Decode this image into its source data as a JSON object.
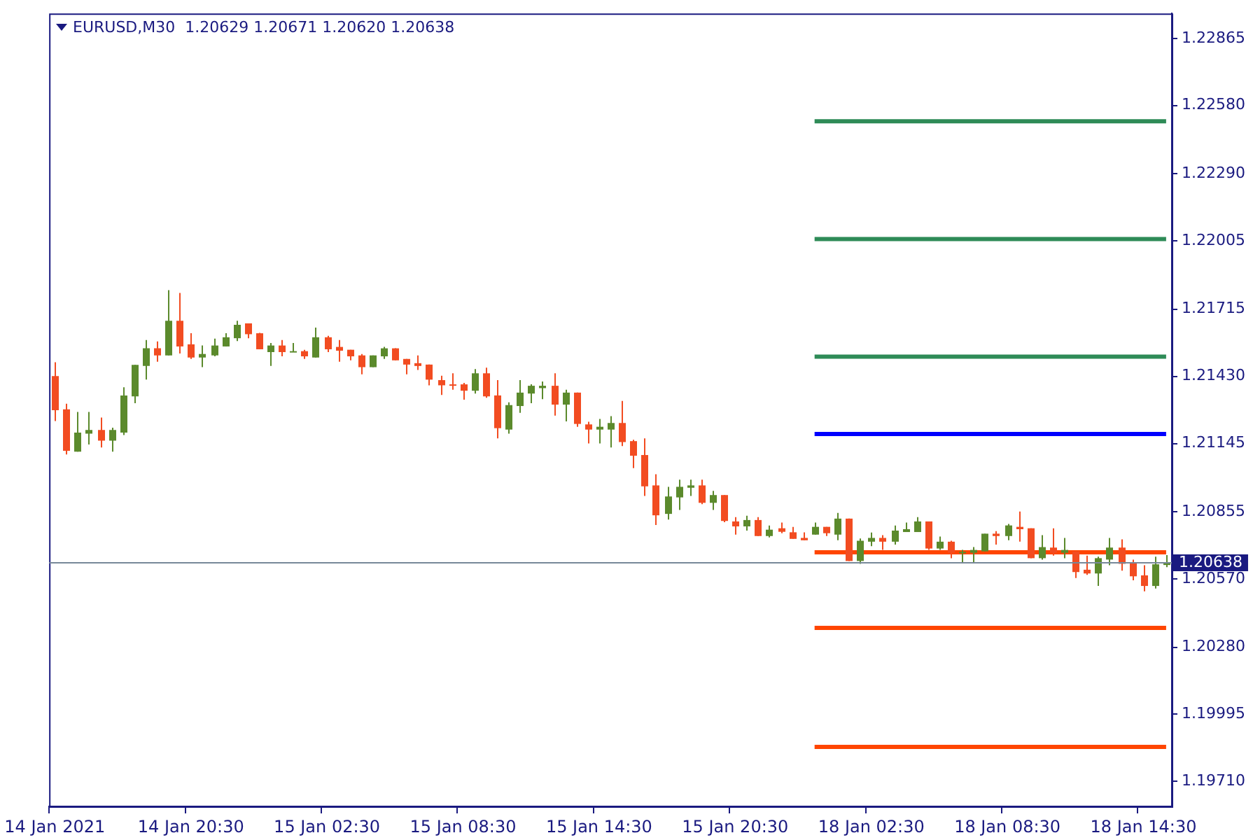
{
  "chart_data": {
    "type": "candlestick",
    "title": "EURUSD,M30  1.20629 1.20671 1.20620 1.20638",
    "categories": [
      "14 Jan 2021",
      null,
      null,
      null,
      null,
      null,
      null,
      null,
      null,
      null,
      null,
      null,
      "14 Jan 20:30",
      null,
      null,
      null,
      null,
      null,
      null,
      null,
      null,
      null,
      null,
      null,
      "15 Jan 02:30",
      null,
      null,
      null,
      null,
      null,
      null,
      null,
      null,
      null,
      null,
      null,
      "15 Jan 08:30",
      null,
      null,
      null,
      null,
      null,
      null,
      null,
      null,
      null,
      null,
      null,
      "15 Jan 14:30",
      null,
      null,
      null,
      null,
      null,
      null,
      null,
      null,
      null,
      null,
      null,
      "15 Jan 20:30",
      null,
      null,
      null,
      null,
      null,
      null,
      null,
      null,
      null,
      null,
      null,
      "18 Jan 02:30",
      null,
      null,
      null,
      null,
      null,
      null,
      null,
      null,
      null,
      null,
      null,
      "18 Jan 08:30",
      null,
      null,
      null,
      null,
      null,
      null,
      null,
      null,
      null,
      null,
      null,
      "18 Jan 14:30",
      null,
      null
    ],
    "ohlc": [
      [
        1.21431,
        1.2149,
        1.2124,
        1.21286
      ],
      [
        1.2129,
        1.21314,
        1.21098,
        1.21114
      ],
      [
        1.2111,
        1.21279,
        1.2111,
        1.21191
      ],
      [
        1.21187,
        1.21279,
        1.21141,
        1.21202
      ],
      [
        1.21202,
        1.21255,
        1.21128,
        1.21157
      ],
      [
        1.21157,
        1.21212,
        1.2111,
        1.21202
      ],
      [
        1.21191,
        1.21384,
        1.21181,
        1.21349
      ],
      [
        1.21345,
        1.21479,
        1.21316,
        1.21479
      ],
      [
        1.21474,
        1.21584,
        1.21416,
        1.21549
      ],
      [
        1.21549,
        1.21578,
        1.21492,
        1.21519
      ],
      [
        1.21519,
        1.21796,
        1.21519,
        1.21666
      ],
      [
        1.21666,
        1.21784,
        1.21527,
        1.21557
      ],
      [
        1.21566,
        1.21613,
        1.21504,
        1.2151
      ],
      [
        1.2151,
        1.21561,
        1.21469,
        1.21525
      ],
      [
        1.21519,
        1.2159,
        1.21515,
        1.21561
      ],
      [
        1.21557,
        1.21613,
        1.21557,
        1.21596
      ],
      [
        1.21592,
        1.21666,
        1.2158,
        1.21649
      ],
      [
        1.21655,
        1.21655,
        1.21592,
        1.21609
      ],
      [
        1.21613,
        1.21615,
        1.21545,
        1.21545
      ],
      [
        1.21533,
        1.21572,
        1.21474,
        1.21561
      ],
      [
        1.21561,
        1.21584,
        1.21515,
        1.21533
      ],
      [
        1.21533,
        1.21572,
        1.21533,
        1.21537
      ],
      [
        1.21537,
        1.21543,
        1.21504,
        1.21515
      ],
      [
        1.2151,
        1.21637,
        1.2151,
        1.21596
      ],
      [
        1.21596,
        1.21602,
        1.21533,
        1.21545
      ],
      [
        1.21555,
        1.21584,
        1.21492,
        1.21539
      ],
      [
        1.21543,
        1.21543,
        1.21498,
        1.21515
      ],
      [
        1.21519,
        1.21525,
        1.21439,
        1.21469
      ],
      [
        1.21469,
        1.21519,
        1.21469,
        1.21519
      ],
      [
        1.21515,
        1.21555,
        1.21504,
        1.21549
      ],
      [
        1.21549,
        1.21549,
        1.21498,
        1.21498
      ],
      [
        1.21504,
        1.21504,
        1.21439,
        1.2148
      ],
      [
        1.21486,
        1.21519,
        1.21457,
        1.21474
      ],
      [
        1.2148,
        1.2148,
        1.21392,
        1.21416
      ],
      [
        1.21414,
        1.21433,
        1.21351,
        1.21392
      ],
      [
        1.21396,
        1.21443,
        1.21373,
        1.21392
      ],
      [
        1.21396,
        1.21402,
        1.21331,
        1.21369
      ],
      [
        1.21369,
        1.21461,
        1.21357,
        1.21443
      ],
      [
        1.21443,
        1.21467,
        1.21339,
        1.21345
      ],
      [
        1.21349,
        1.21414,
        1.21167,
        1.2121
      ],
      [
        1.21204,
        1.2132,
        1.21187,
        1.21308
      ],
      [
        1.21304,
        1.21414,
        1.21275,
        1.21361
      ],
      [
        1.21357,
        1.21396,
        1.21316,
        1.2139
      ],
      [
        1.2138,
        1.21408,
        1.21333,
        1.2139
      ],
      [
        1.2139,
        1.21443,
        1.21263,
        1.2131
      ],
      [
        1.2131,
        1.21373,
        1.21239,
        1.21361
      ],
      [
        1.21361,
        1.21361,
        1.21216,
        1.21228
      ],
      [
        1.21226,
        1.21237,
        1.21145,
        1.21204
      ],
      [
        1.21204,
        1.21249,
        1.21145,
        1.21216
      ],
      [
        1.21204,
        1.21261,
        1.21128,
        1.21232
      ],
      [
        1.21232,
        1.21326,
        1.21134,
        1.21151
      ],
      [
        1.21155,
        1.21161,
        1.2104,
        1.21093
      ],
      [
        1.21096,
        1.21167,
        1.20922,
        1.20963
      ],
      [
        1.20967,
        1.21014,
        1.20799,
        1.2084
      ],
      [
        1.20846,
        1.20961,
        1.20822,
        1.2092
      ],
      [
        1.20916,
        1.20991,
        1.20863,
        1.20961
      ],
      [
        1.20957,
        1.20991,
        1.20922,
        1.20967
      ],
      [
        1.20967,
        1.20991,
        1.20887,
        1.20893
      ],
      [
        1.20893,
        1.20944,
        1.20863,
        1.20926
      ],
      [
        1.20926,
        1.20926,
        1.20811,
        1.20816
      ],
      [
        1.20814,
        1.20832,
        1.20758,
        1.20793
      ],
      [
        1.20793,
        1.20838,
        1.20775,
        1.2082
      ],
      [
        1.2082,
        1.20832,
        1.20752,
        1.20752
      ],
      [
        1.20752,
        1.20797,
        1.20746,
        1.20779
      ],
      [
        1.20785,
        1.20809,
        1.20764,
        1.2077
      ],
      [
        1.20768,
        1.20791,
        1.2074,
        1.2074
      ],
      [
        1.20744,
        1.20768,
        1.20734,
        1.20734
      ],
      [
        1.20758,
        1.20809,
        1.20758,
        1.20791
      ],
      [
        1.20791,
        1.20791,
        1.20752,
        1.20764
      ],
      [
        1.20758,
        1.2085,
        1.20734,
        1.20826
      ],
      [
        1.20826,
        1.20826,
        1.20646,
        1.20646
      ],
      [
        1.20646,
        1.20742,
        1.20634,
        1.20732
      ],
      [
        1.20728,
        1.20767,
        1.20709,
        1.20744
      ],
      [
        1.20744,
        1.20756,
        1.20693,
        1.20728
      ],
      [
        1.20728,
        1.20797,
        1.20716,
        1.20775
      ],
      [
        1.20769,
        1.20809,
        1.20769,
        1.20781
      ],
      [
        1.20769,
        1.20832,
        1.20769,
        1.20814
      ],
      [
        1.20814,
        1.20814,
        1.20693,
        1.20699
      ],
      [
        1.20699,
        1.2075,
        1.20693,
        1.20728
      ],
      [
        1.20728,
        1.20732,
        1.20658,
        1.20681
      ],
      [
        1.20681,
        1.20693,
        1.2064,
        1.20685
      ],
      [
        1.20681,
        1.20705,
        1.2064,
        1.20693
      ],
      [
        1.20687,
        1.20762,
        1.20687,
        1.20762
      ],
      [
        1.20762,
        1.20773,
        1.20716,
        1.20752
      ],
      [
        1.20752,
        1.20803,
        1.20734,
        1.20797
      ],
      [
        1.20791,
        1.20856,
        1.20728,
        1.20781
      ],
      [
        1.20785,
        1.20785,
        1.20658,
        1.20658
      ],
      [
        1.20658,
        1.20756,
        1.20652,
        1.20705
      ],
      [
        1.20703,
        1.20785,
        1.20669,
        1.20681
      ],
      [
        1.20681,
        1.20744,
        1.20658,
        1.20693
      ],
      [
        1.20687,
        1.20687,
        1.20574,
        1.20599
      ],
      [
        1.20609,
        1.20669,
        1.20587,
        1.20593
      ],
      [
        1.20593,
        1.20664,
        1.2054,
        1.20658
      ],
      [
        1.20652,
        1.20744,
        1.20628,
        1.20703
      ],
      [
        1.20703,
        1.20738,
        1.20605,
        1.20634
      ],
      [
        1.2064,
        1.20652,
        1.20564,
        1.20581
      ],
      [
        1.20585,
        1.20628,
        1.20517,
        1.2054
      ],
      [
        1.2054,
        1.20664,
        1.20529,
        1.20632
      ],
      [
        1.20629,
        1.20671,
        1.2062,
        1.20638
      ]
    ],
    "colors": [
      "#f24c21",
      "#f24c21",
      "#5b8a2c",
      "#5b8a2c",
      "#f24c21",
      "#5b8a2c",
      "#5b8a2c",
      "#5b8a2c",
      "#5b8a2c",
      "#f24c21",
      "#5b8a2c",
      "#f24c21",
      "#f24c21",
      "#5b8a2c",
      "#5b8a2c",
      "#5b8a2c",
      "#5b8a2c",
      "#f24c21",
      "#f24c21",
      "#5b8a2c",
      "#f24c21",
      "#5b8a2c",
      "#f24c21",
      "#5b8a2c",
      "#f24c21",
      "#f24c21",
      "#f24c21",
      "#f24c21",
      "#5b8a2c",
      "#5b8a2c",
      "#f24c21",
      "#f24c21",
      "#f24c21",
      "#f24c21",
      "#f24c21",
      "#f24c21",
      "#f24c21",
      "#5b8a2c",
      "#f24c21",
      "#f24c21",
      "#5b8a2c",
      "#5b8a2c",
      "#5b8a2c",
      "#5b8a2c",
      "#f24c21",
      "#5b8a2c",
      "#f24c21",
      "#f24c21",
      "#5b8a2c",
      "#5b8a2c",
      "#f24c21",
      "#f24c21",
      "#f24c21",
      "#f24c21",
      "#5b8a2c",
      "#5b8a2c",
      "#5b8a2c",
      "#f24c21",
      "#5b8a2c",
      "#f24c21",
      "#f24c21",
      "#5b8a2c",
      "#f24c21",
      "#5b8a2c",
      "#f24c21",
      "#f24c21",
      "#f24c21",
      "#5b8a2c",
      "#f24c21",
      "#5b8a2c",
      "#f24c21",
      "#5b8a2c",
      "#5b8a2c",
      "#f24c21",
      "#5b8a2c",
      "#5b8a2c",
      "#5b8a2c",
      "#f24c21",
      "#5b8a2c",
      "#f24c21",
      "#5b8a2c",
      "#5b8a2c",
      "#5b8a2c",
      "#f24c21",
      "#5b8a2c",
      "#f24c21",
      "#f24c21",
      "#5b8a2c",
      "#f24c21",
      "#5b8a2c",
      "#f24c21",
      "#f24c21",
      "#5b8a2c",
      "#5b8a2c",
      "#f24c21",
      "#f24c21",
      "#f24c21",
      "#5b8a2c",
      "#5b8a2c"
    ],
    "series": [
      {
        "type": "line",
        "color": "#2e8b57",
        "values": [
          null,
          null,
          null,
          null,
          null,
          null,
          null,
          null,
          null,
          null,
          null,
          null,
          null,
          null,
          null,
          null,
          null,
          null,
          null,
          null,
          null,
          null,
          null,
          null,
          null,
          null,
          null,
          null,
          null,
          null,
          null,
          null,
          null,
          null,
          null,
          null,
          null,
          null,
          null,
          null,
          null,
          null,
          null,
          null,
          null,
          null,
          null,
          null,
          null,
          null,
          null,
          null,
          null,
          null,
          null,
          null,
          null,
          null,
          null,
          null,
          null,
          null,
          null,
          null,
          null,
          null,
          null,
          1.22513,
          1.22513,
          1.22513,
          1.22513,
          1.22513,
          1.22513,
          1.22513,
          1.22513,
          1.22513,
          1.22513,
          1.22513,
          1.22513,
          1.22513,
          1.22513,
          1.22513,
          1.22513,
          1.22513,
          1.22513,
          1.22513,
          1.22513,
          1.22513,
          1.22513,
          1.22513,
          1.22513,
          1.22513,
          1.22513,
          1.22513,
          1.22513,
          1.22513,
          1.22513,
          1.22513,
          1.22513
        ]
      },
      {
        "type": "line",
        "color": "#2e8b57",
        "values": [
          null,
          null,
          null,
          null,
          null,
          null,
          null,
          null,
          null,
          null,
          null,
          null,
          null,
          null,
          null,
          null,
          null,
          null,
          null,
          null,
          null,
          null,
          null,
          null,
          null,
          null,
          null,
          null,
          null,
          null,
          null,
          null,
          null,
          null,
          null,
          null,
          null,
          null,
          null,
          null,
          null,
          null,
          null,
          null,
          null,
          null,
          null,
          null,
          null,
          null,
          null,
          null,
          null,
          null,
          null,
          null,
          null,
          null,
          null,
          null,
          null,
          null,
          null,
          null,
          null,
          null,
          null,
          1.22013,
          1.22013,
          1.22013,
          1.22013,
          1.22013,
          1.22013,
          1.22013,
          1.22013,
          1.22013,
          1.22013,
          1.22013,
          1.22013,
          1.22013,
          1.22013,
          1.22013,
          1.22013,
          1.22013,
          1.22013,
          1.22013,
          1.22013,
          1.22013,
          1.22013,
          1.22013,
          1.22013,
          1.22013,
          1.22013,
          1.22013,
          1.22013,
          1.22013,
          1.22013,
          1.22013,
          1.22013
        ]
      },
      {
        "type": "line",
        "color": "#2e8b57",
        "values": [
          null,
          null,
          null,
          null,
          null,
          null,
          null,
          null,
          null,
          null,
          null,
          null,
          null,
          null,
          null,
          null,
          null,
          null,
          null,
          null,
          null,
          null,
          null,
          null,
          null,
          null,
          null,
          null,
          null,
          null,
          null,
          null,
          null,
          null,
          null,
          null,
          null,
          null,
          null,
          null,
          null,
          null,
          null,
          null,
          null,
          null,
          null,
          null,
          null,
          null,
          null,
          null,
          null,
          null,
          null,
          null,
          null,
          null,
          null,
          null,
          null,
          null,
          null,
          null,
          null,
          null,
          null,
          1.21514,
          1.21514,
          1.21514,
          1.21514,
          1.21514,
          1.21514,
          1.21514,
          1.21514,
          1.21514,
          1.21514,
          1.21514,
          1.21514,
          1.21514,
          1.21514,
          1.21514,
          1.21514,
          1.21514,
          1.21514,
          1.21514,
          1.21514,
          1.21514,
          1.21514,
          1.21514,
          1.21514,
          1.21514,
          1.21514,
          1.21514,
          1.21514,
          1.21514,
          1.21514,
          1.21514,
          1.21514
        ]
      },
      {
        "type": "line",
        "color": "#0000ff",
        "values": [
          null,
          null,
          null,
          null,
          null,
          null,
          null,
          null,
          null,
          null,
          null,
          null,
          null,
          null,
          null,
          null,
          null,
          null,
          null,
          null,
          null,
          null,
          null,
          null,
          null,
          null,
          null,
          null,
          null,
          null,
          null,
          null,
          null,
          null,
          null,
          null,
          null,
          null,
          null,
          null,
          null,
          null,
          null,
          null,
          null,
          null,
          null,
          null,
          null,
          null,
          null,
          null,
          null,
          null,
          null,
          null,
          null,
          null,
          null,
          null,
          null,
          null,
          null,
          null,
          null,
          null,
          null,
          1.21185,
          1.21185,
          1.21185,
          1.21185,
          1.21185,
          1.21185,
          1.21185,
          1.21185,
          1.21185,
          1.21185,
          1.21185,
          1.21185,
          1.21185,
          1.21185,
          1.21185,
          1.21185,
          1.21185,
          1.21185,
          1.21185,
          1.21185,
          1.21185,
          1.21185,
          1.21185,
          1.21185,
          1.21185,
          1.21185,
          1.21185,
          1.21185,
          1.21185,
          1.21185,
          1.21185,
          1.21185
        ]
      },
      {
        "type": "line",
        "color": "#ff4500",
        "values": [
          null,
          null,
          null,
          null,
          null,
          null,
          null,
          null,
          null,
          null,
          null,
          null,
          null,
          null,
          null,
          null,
          null,
          null,
          null,
          null,
          null,
          null,
          null,
          null,
          null,
          null,
          null,
          null,
          null,
          null,
          null,
          null,
          null,
          null,
          null,
          null,
          null,
          null,
          null,
          null,
          null,
          null,
          null,
          null,
          null,
          null,
          null,
          null,
          null,
          null,
          null,
          null,
          null,
          null,
          null,
          null,
          null,
          null,
          null,
          null,
          null,
          null,
          null,
          null,
          null,
          null,
          null,
          1.20683,
          1.20683,
          1.20683,
          1.20683,
          1.20683,
          1.20683,
          1.20683,
          1.20683,
          1.20683,
          1.20683,
          1.20683,
          1.20683,
          1.20683,
          1.20683,
          1.20683,
          1.20683,
          1.20683,
          1.20683,
          1.20683,
          1.20683,
          1.20683,
          1.20683,
          1.20683,
          1.20683,
          1.20683,
          1.20683,
          1.20683,
          1.20683,
          1.20683,
          1.20683,
          1.20683,
          1.20683
        ]
      },
      {
        "type": "line",
        "color": "#ff4500",
        "values": [
          null,
          null,
          null,
          null,
          null,
          null,
          null,
          null,
          null,
          null,
          null,
          null,
          null,
          null,
          null,
          null,
          null,
          null,
          null,
          null,
          null,
          null,
          null,
          null,
          null,
          null,
          null,
          null,
          null,
          null,
          null,
          null,
          null,
          null,
          null,
          null,
          null,
          null,
          null,
          null,
          null,
          null,
          null,
          null,
          null,
          null,
          null,
          null,
          null,
          null,
          null,
          null,
          null,
          null,
          null,
          null,
          null,
          null,
          null,
          null,
          null,
          null,
          null,
          null,
          null,
          null,
          null,
          1.20362,
          1.20362,
          1.20362,
          1.20362,
          1.20362,
          1.20362,
          1.20362,
          1.20362,
          1.20362,
          1.20362,
          1.20362,
          1.20362,
          1.20362,
          1.20362,
          1.20362,
          1.20362,
          1.20362,
          1.20362,
          1.20362,
          1.20362,
          1.20362,
          1.20362,
          1.20362,
          1.20362,
          1.20362,
          1.20362,
          1.20362,
          1.20362,
          1.20362,
          1.20362,
          1.20362,
          1.20362
        ]
      },
      {
        "type": "line",
        "color": "#ff4500",
        "values": [
          null,
          null,
          null,
          null,
          null,
          null,
          null,
          null,
          null,
          null,
          null,
          null,
          null,
          null,
          null,
          null,
          null,
          null,
          null,
          null,
          null,
          null,
          null,
          null,
          null,
          null,
          null,
          null,
          null,
          null,
          null,
          null,
          null,
          null,
          null,
          null,
          null,
          null,
          null,
          null,
          null,
          null,
          null,
          null,
          null,
          null,
          null,
          null,
          null,
          null,
          null,
          null,
          null,
          null,
          null,
          null,
          null,
          null,
          null,
          null,
          null,
          null,
          null,
          null,
          null,
          null,
          null,
          1.19857,
          1.19857,
          1.19857,
          1.19857,
          1.19857,
          1.19857,
          1.19857,
          1.19857,
          1.19857,
          1.19857,
          1.19857,
          1.19857,
          1.19857,
          1.19857,
          1.19857,
          1.19857,
          1.19857,
          1.19857,
          1.19857,
          1.19857,
          1.19857,
          1.19857,
          1.19857,
          1.19857,
          1.19857,
          1.19857,
          1.19857,
          1.19857,
          1.19857,
          1.19857,
          1.19857,
          1.19857
        ]
      }
    ],
    "ref_lines": [
      {
        "axis": "y",
        "value": 1.20638,
        "label": "1.20638",
        "color": "#778899"
      }
    ],
    "ylim": [
      1.19604,
      1.22971
    ],
    "yticks": [
      {
        "value": 1.1971,
        "label": "1.19710"
      },
      1.19995,
      {
        "value": 1.2028,
        "label": "1.20280"
      },
      {
        "value": 1.2057,
        "label": "1.20570"
      },
      1.20855,
      1.21145,
      {
        "value": 1.2143,
        "label": "1.21430"
      },
      1.21715,
      1.22005,
      {
        "value": 1.2229,
        "label": "1.22290"
      },
      {
        "value": 1.2258,
        "label": "1.22580"
      },
      1.22865
    ]
  }
}
